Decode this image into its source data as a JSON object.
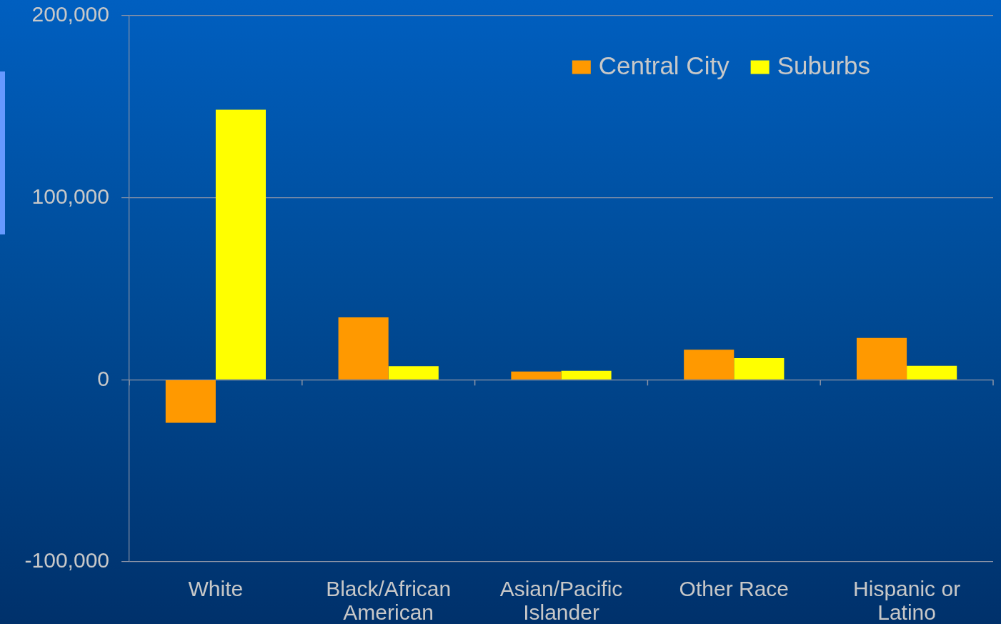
{
  "chart_data": {
    "type": "bar",
    "categories": [
      "White",
      "Black/African American",
      "Asian/Pacific Islander",
      "Other Race",
      "Hispanic or Latino"
    ],
    "series": [
      {
        "name": "Central City",
        "color": "#ff9900",
        "values": [
          -23600,
          34300,
          4500,
          16500,
          23000
        ]
      },
      {
        "name": "Suburbs",
        "color": "#ffff00",
        "values": [
          148400,
          7500,
          4900,
          11900,
          7700
        ]
      }
    ],
    "ylim": [
      -100000,
      200000
    ],
    "yticks": [
      {
        "value": -100000,
        "label": "-100,000"
      },
      0,
      {
        "value": 100000,
        "label": "100,000"
      },
      {
        "value": 200000,
        "label": "200,000"
      }
    ],
    "grid": "y",
    "legend": "top right"
  }
}
